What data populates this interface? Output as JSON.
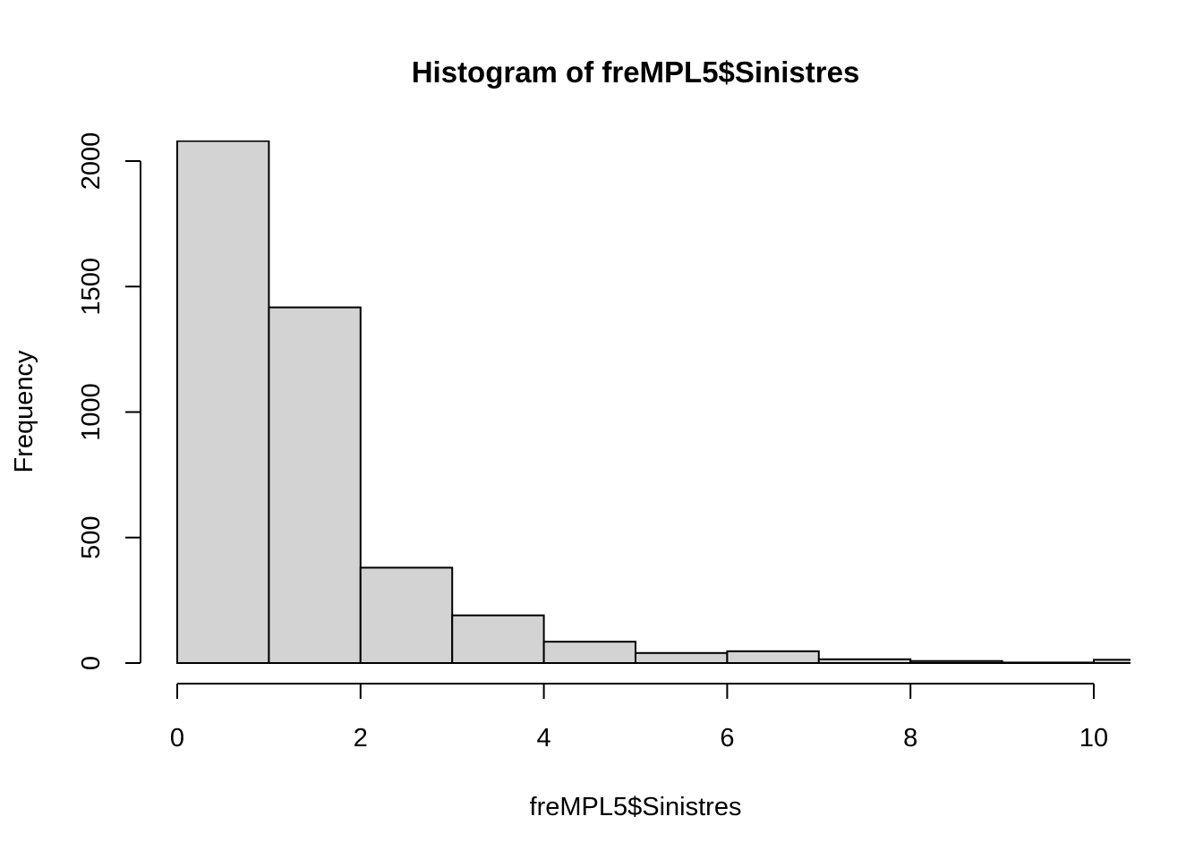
{
  "chart_data": {
    "type": "bar",
    "title": "Histogram of freMPL5$Sinistres",
    "xlabel": "freMPL5$Sinistres",
    "ylabel": "Frequency",
    "bin_edges": [
      0,
      1,
      2,
      3,
      4,
      5,
      6,
      7,
      8,
      9,
      10,
      11
    ],
    "values": [
      2080,
      1417,
      380,
      190,
      85,
      40,
      47,
      15,
      8,
      2,
      13
    ],
    "xlim": [
      0,
      10.4
    ],
    "ylim": [
      0,
      2080
    ],
    "x_ticks": [
      0,
      2,
      4,
      6,
      8,
      10
    ],
    "y_ticks": [
      0,
      500,
      1000,
      1500,
      2000
    ],
    "x_tick_labels": [
      "0",
      "2",
      "4",
      "6",
      "8",
      "10"
    ],
    "y_tick_labels": [
      "0",
      "500",
      "1000",
      "1500",
      "2000"
    ],
    "bar_color": "#d3d3d3",
    "grid": false
  }
}
